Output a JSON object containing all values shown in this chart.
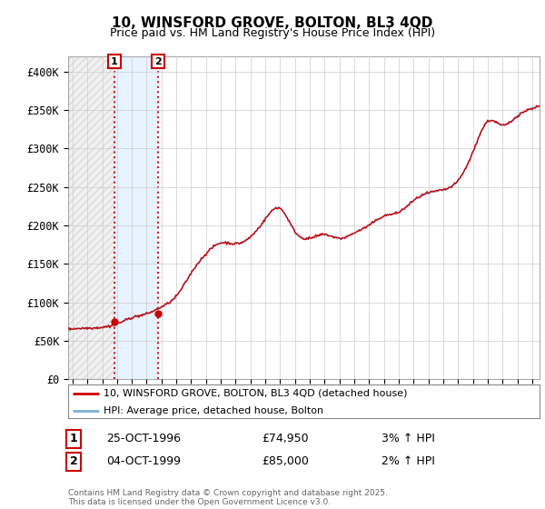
{
  "title": "10, WINSFORD GROVE, BOLTON, BL3 4QD",
  "subtitle": "Price paid vs. HM Land Registry's House Price Index (HPI)",
  "legend_line1": "10, WINSFORD GROVE, BOLTON, BL3 4QD (detached house)",
  "legend_line2": "HPI: Average price, detached house, Bolton",
  "footer": "Contains HM Land Registry data © Crown copyright and database right 2025.\nThis data is licensed under the Open Government Licence v3.0.",
  "transactions": [
    {
      "label": "1",
      "date": "25-OCT-1996",
      "price": 74950,
      "hpi_change": "3% ↑ HPI",
      "year": 1996.82
    },
    {
      "label": "2",
      "date": "04-OCT-1999",
      "price": 85000,
      "hpi_change": "2% ↑ HPI",
      "year": 1999.76
    }
  ],
  "price_color": "#cc0000",
  "hpi_color": "#7aafdc",
  "hpi_fill_color": "#ddeeff",
  "background_color": "#ffffff",
  "plot_bg_color": "#ffffff",
  "grid_color": "#cccccc",
  "hatch_color": "#e0e8f0",
  "ylim": [
    0,
    420000
  ],
  "yticks": [
    0,
    50000,
    100000,
    150000,
    200000,
    250000,
    300000,
    350000,
    400000
  ],
  "xmin": 1993.7,
  "xmax": 2025.5,
  "anchors_years": [
    1993.7,
    1994,
    1995,
    1996,
    1997,
    1998,
    1999,
    2000,
    2001,
    2002,
    2003,
    2004,
    2005,
    2006,
    2007,
    2008,
    2009,
    2010,
    2011,
    2012,
    2013,
    2014,
    2015,
    2016,
    2017,
    2018,
    2019,
    2020,
    2021,
    2022,
    2023,
    2024,
    2025,
    2025.5
  ],
  "anchors_vals": [
    65000,
    65500,
    66500,
    67500,
    72000,
    80000,
    85000,
    94000,
    108000,
    138000,
    163000,
    177000,
    176000,
    185000,
    208000,
    222000,
    192000,
    183000,
    188000,
    183000,
    190000,
    200000,
    212000,
    217000,
    232000,
    242000,
    246000,
    258000,
    295000,
    335000,
    330000,
    342000,
    352000,
    355000
  ]
}
